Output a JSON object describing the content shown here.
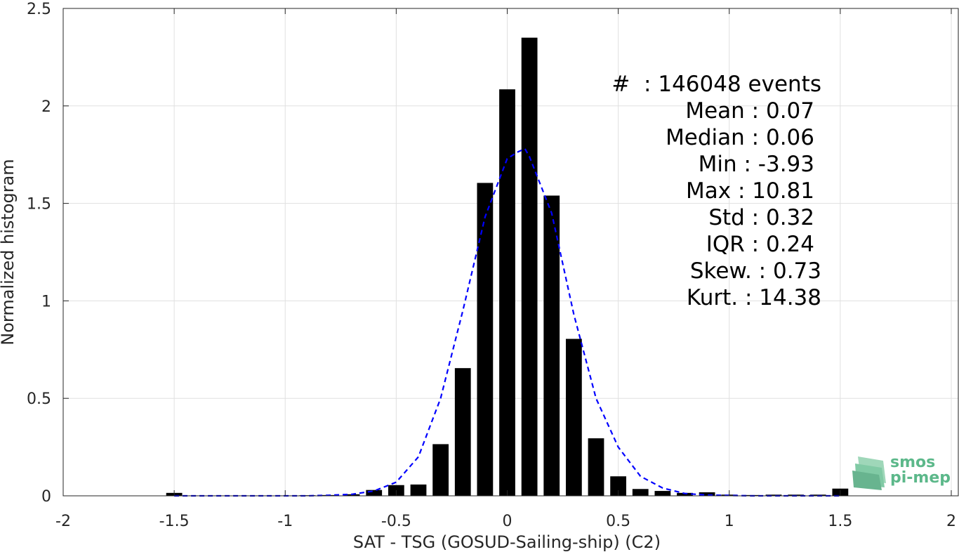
{
  "chart_data": {
    "type": "bar",
    "xlabel": "SAT - TSG (GOSUD-Sailing-ship) (C2)",
    "ylabel": "Normalized histogram",
    "xlim": [
      -2,
      2
    ],
    "ylim": [
      0,
      2.5
    ],
    "x_ticks": [
      -2,
      -1.5,
      -1,
      -0.5,
      0,
      0.5,
      1,
      1.5,
      2
    ],
    "x_tick_labels": [
      "-2",
      "-1.5",
      "-1",
      "-0.5",
      "0",
      "0.5",
      "1",
      "1.5",
      "2"
    ],
    "y_ticks": [
      0,
      0.5,
      1,
      1.5,
      2,
      2.5
    ],
    "y_tick_labels": [
      "0",
      "0.5",
      "1",
      "1.5",
      "2",
      "2.5"
    ],
    "grid": true,
    "bar_color": "#000000",
    "bars": {
      "x": [
        -1.5,
        -1.4,
        -1.3,
        -1.2,
        -1.1,
        -1.0,
        -0.9,
        -0.8,
        -0.7,
        -0.6,
        -0.5,
        -0.4,
        -0.3,
        -0.2,
        -0.1,
        0.0,
        0.1,
        0.2,
        0.3,
        0.4,
        0.5,
        0.6,
        0.7,
        0.8,
        0.9,
        1.0,
        1.1,
        1.2,
        1.3,
        1.4,
        1.5
      ],
      "values": [
        0.015,
        0.002,
        0.002,
        0.002,
        0.002,
        0.002,
        0.003,
        0.004,
        0.008,
        0.03,
        0.055,
        0.058,
        0.265,
        0.655,
        1.605,
        2.085,
        2.35,
        1.54,
        0.805,
        0.295,
        0.1,
        0.035,
        0.025,
        0.015,
        0.018,
        0.006,
        0.004,
        0.006,
        0.006,
        0.006,
        0.037
      ]
    },
    "fit_curve": {
      "color": "#0000ff",
      "style": "dashed",
      "x": [
        -1.5,
        -1.4,
        -1.3,
        -1.2,
        -1.1,
        -1.0,
        -0.9,
        -0.8,
        -0.7,
        -0.6,
        -0.5,
        -0.4,
        -0.3,
        -0.2,
        -0.1,
        0.0,
        0.05,
        0.08,
        0.1,
        0.2,
        0.3,
        0.4,
        0.5,
        0.6,
        0.7,
        0.8,
        0.9,
        1.0,
        1.1,
        1.2,
        1.3,
        1.4,
        1.5
      ],
      "y": [
        0.0,
        0.0,
        0.0,
        0.0,
        0.0,
        0.0,
        0.0,
        0.003,
        0.008,
        0.025,
        0.07,
        0.2,
        0.5,
        0.95,
        1.43,
        1.73,
        1.765,
        1.78,
        1.74,
        1.45,
        0.93,
        0.5,
        0.25,
        0.1,
        0.04,
        0.012,
        0.004,
        0.002,
        0.0,
        0.0,
        0.0,
        0.0,
        0.0
      ]
    },
    "annotation_lines": [
      "#  : 146048 events",
      "Mean : 0.07",
      "Median : 0.06",
      "Min : -3.93",
      "Max : 10.81",
      "Std : 0.32",
      "IQR : 0.24",
      "Skew. : 0.73",
      "Kurt. : 14.38"
    ]
  },
  "logo": {
    "line1": "smos",
    "line2": "pi-mep",
    "color": "#5cb88a"
  }
}
